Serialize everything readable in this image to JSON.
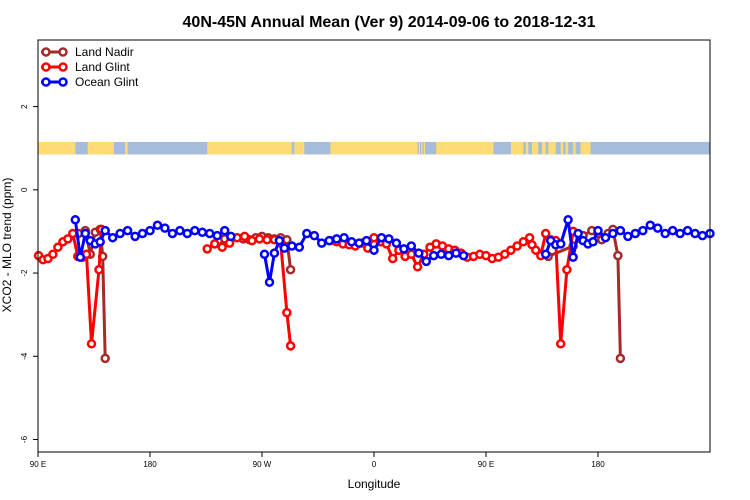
{
  "chart_data": {
    "type": "line",
    "title": "40N-45N Annual Mean (Ver 9)   2014-09-06 to 2018-12-31",
    "xlabel": "Longitude",
    "ylabel": "XCO2 - MLO trend (ppm)",
    "xlim": [
      90,
      630
    ],
    "ylim": [
      -6.3,
      3.6
    ],
    "yticks": [
      {
        "value": 2,
        "label": "2"
      },
      {
        "value": 0,
        "label": "0"
      },
      {
        "value": -2,
        "label": "-2"
      },
      {
        "value": -4,
        "label": "-4"
      },
      {
        "value": -6,
        "label": "-6"
      }
    ],
    "xticks": [
      {
        "value": 90,
        "label": "90 E"
      },
      {
        "value": 180,
        "label": "180"
      },
      {
        "value": 270,
        "label": "90 W"
      },
      {
        "value": 360,
        "label": "0"
      },
      {
        "value": 450,
        "label": "90 E"
      },
      {
        "value": 540,
        "label": "180"
      }
    ],
    "land_ocean_strip": {
      "y_range": [
        0.85,
        1.15
      ],
      "ocean_color": "#a5bddb",
      "land_color": "#fedb75",
      "land_segments": [
        [
          90,
          120
        ],
        [
          130,
          144
        ],
        [
          146,
          150
        ],
        [
          145,
          148
        ],
        [
          146,
          147
        ],
        [
          145,
          146
        ],
        [
          146,
          148
        ],
        [
          146,
          149
        ],
        [
          149,
          151
        ],
        [
          160,
          162
        ],
        [
          143,
          146
        ],
        [
          144,
          145
        ],
        [
          145,
          145
        ],
        [
          143,
          143
        ],
        [
          226,
          294
        ],
        [
          296,
          298
        ],
        [
          298,
          300
        ],
        [
          300,
          302
        ],
        [
          302,
          304
        ],
        [
          325,
          395
        ],
        [
          396,
          397
        ],
        [
          398,
          399
        ],
        [
          400,
          401
        ],
        [
          415,
          456
        ],
        [
          410,
          413
        ],
        [
          412,
          414
        ],
        [
          414,
          416
        ],
        [
          470,
          480
        ],
        [
          482,
          484
        ],
        [
          487,
          489
        ],
        [
          489,
          491
        ],
        [
          490,
          492
        ],
        [
          495,
          498
        ],
        [
          500,
          506
        ],
        [
          510,
          512
        ],
        [
          514,
          516
        ],
        [
          520,
          522
        ],
        [
          530,
          534
        ],
        [
          526,
          530
        ],
        [
          532,
          533
        ]
      ]
    },
    "legend": {
      "position": "top-left",
      "entries": [
        {
          "name": "Land Nadir",
          "color": "#a52a2a"
        },
        {
          "name": "Land Glint",
          "color": "#ff0000"
        },
        {
          "name": "Ocean Glint",
          "color": "#0000ff"
        }
      ]
    },
    "series": [
      {
        "name": "Land Nadir",
        "color": "#a52a2a",
        "segments": [
          [
            [
              122.5,
              -1.05
            ],
            [
              128,
              -0.98
            ],
            [
              132,
              -1.55
            ],
            [
              136,
              -1.02
            ],
            [
              140,
              -0.95
            ],
            [
              142,
              -1.6
            ],
            [
              144,
              -4.05
            ]
          ],
          [
            [
              235,
              -1.22
            ],
            [
              240,
              -1.18
            ],
            [
              245,
              -1.15
            ],
            [
              250,
              -1.15
            ],
            [
              255,
              -1.18
            ],
            [
              260,
              -1.2
            ],
            [
              265,
              -1.15
            ],
            [
              270,
              -1.12
            ],
            [
              275,
              -1.15
            ],
            [
              280,
              -1.18
            ],
            [
              285,
              -1.15
            ],
            [
              290,
              -1.2
            ],
            [
              293,
              -1.92
            ]
          ],
          [
            [
              500,
              -1.6
            ],
            [
              520,
              -1.35
            ],
            [
              528,
              -1.1
            ],
            [
              535,
              -0.98
            ],
            [
              540,
              -1.05
            ],
            [
              543,
              -1.2
            ],
            [
              548,
              -1.05
            ],
            [
              552,
              -0.95
            ],
            [
              556,
              -1.58
            ],
            [
              558,
              -4.05
            ]
          ]
        ]
      },
      {
        "name": "Land Glint",
        "color": "#ff0000",
        "segments": [
          [
            [
              90.5,
              -1.58
            ],
            [
              94,
              -1.68
            ],
            [
              98,
              -1.65
            ],
            [
              102,
              -1.55
            ],
            [
              106,
              -1.38
            ],
            [
              110,
              -1.25
            ],
            [
              114,
              -1.18
            ],
            [
              118,
              -1.05
            ],
            [
              122,
              -1.6
            ],
            [
              126,
              -1.62
            ],
            [
              129,
              -1.55
            ],
            [
              133,
              -3.7
            ],
            [
              139,
              -1.92
            ],
            [
              141,
              -0.95
            ]
          ],
          [
            [
              226,
              -1.42
            ],
            [
              232,
              -1.3
            ],
            [
              238,
              -1.38
            ],
            [
              244,
              -1.28
            ],
            [
              250,
              -1.15
            ],
            [
              256,
              -1.12
            ],
            [
              262,
              -1.22
            ],
            [
              268,
              -1.18
            ],
            [
              274,
              -1.2
            ],
            [
              280,
              -1.2
            ],
            [
              285,
              -1.28
            ],
            [
              290,
              -2.95
            ],
            [
              293,
              -3.75
            ]
          ],
          [
            [
              325,
              -1.22
            ],
            [
              330,
              -1.25
            ],
            [
              335,
              -1.3
            ],
            [
              340,
              -1.32
            ],
            [
              345,
              -1.35
            ],
            [
              350,
              -1.28
            ],
            [
              355,
              -1.4
            ],
            [
              360,
              -1.15
            ],
            [
              365,
              -1.25
            ],
            [
              370,
              -1.3
            ],
            [
              375,
              -1.65
            ],
            [
              380,
              -1.45
            ],
            [
              385,
              -1.6
            ],
            [
              390,
              -1.55
            ],
            [
              395,
              -1.85
            ],
            [
              400,
              -1.55
            ],
            [
              405,
              -1.38
            ],
            [
              410,
              -1.3
            ],
            [
              415,
              -1.35
            ],
            [
              420,
              -1.42
            ],
            [
              425,
              -1.45
            ],
            [
              430,
              -1.52
            ],
            [
              435,
              -1.62
            ],
            [
              440,
              -1.6
            ],
            [
              445,
              -1.55
            ],
            [
              450,
              -1.58
            ],
            [
              455,
              -1.65
            ],
            [
              460,
              -1.62
            ],
            [
              465,
              -1.55
            ],
            [
              470,
              -1.45
            ],
            [
              475,
              -1.35
            ],
            [
              480,
              -1.25
            ],
            [
              485,
              -1.15
            ],
            [
              487,
              -1.32
            ],
            [
              490,
              -1.45
            ],
            [
              494,
              -1.58
            ],
            [
              498,
              -1.05
            ],
            [
              502,
              -1.2
            ],
            [
              506,
              -1.22
            ],
            [
              510,
              -3.7
            ],
            [
              515,
              -1.92
            ],
            [
              520,
              -1.0
            ]
          ]
        ]
      },
      {
        "name": "Ocean Glint",
        "color": "#0000ff",
        "segments": [
          [
            [
              120,
              -0.72
            ],
            [
              124,
              -1.62
            ],
            [
              128,
              -1.05
            ],
            [
              132,
              -1.22
            ],
            [
              136,
              -1.3
            ],
            [
              140,
              -1.25
            ],
            [
              144,
              -0.98
            ],
            [
              150,
              -1.15
            ],
            [
              156,
              -1.05
            ],
            [
              162,
              -0.98
            ],
            [
              168,
              -1.12
            ],
            [
              174,
              -1.05
            ],
            [
              180,
              -0.98
            ],
            [
              186,
              -0.85
            ],
            [
              192,
              -0.92
            ],
            [
              198,
              -1.05
            ],
            [
              204,
              -0.98
            ],
            [
              210,
              -1.05
            ],
            [
              216,
              -0.98
            ],
            [
              222,
              -1.02
            ],
            [
              228,
              -1.05
            ],
            [
              234,
              -1.1
            ],
            [
              240,
              -0.98
            ],
            [
              245,
              -1.12
            ]
          ],
          [
            [
              272,
              -1.55
            ],
            [
              276,
              -2.22
            ],
            [
              280,
              -1.52
            ],
            [
              284,
              -1.22
            ],
            [
              288,
              -1.4
            ],
            [
              294,
              -1.35
            ],
            [
              300,
              -1.38
            ],
            [
              306,
              -1.05
            ],
            [
              312,
              -1.1
            ],
            [
              318,
              -1.28
            ],
            [
              324,
              -1.22
            ],
            [
              330,
              -1.18
            ],
            [
              336,
              -1.15
            ],
            [
              342,
              -1.25
            ],
            [
              348,
              -1.28
            ],
            [
              354,
              -1.22
            ],
            [
              360,
              -1.45
            ],
            [
              366,
              -1.15
            ],
            [
              372,
              -1.18
            ],
            [
              378,
              -1.28
            ],
            [
              384,
              -1.42
            ],
            [
              390,
              -1.35
            ],
            [
              396,
              -1.52
            ],
            [
              402,
              -1.72
            ],
            [
              408,
              -1.58
            ],
            [
              414,
              -1.55
            ],
            [
              420,
              -1.58
            ],
            [
              426,
              -1.52
            ],
            [
              432,
              -1.58
            ]
          ],
          [
            [
              498,
              -1.55
            ],
            [
              502,
              -1.22
            ],
            [
              506,
              -1.32
            ],
            [
              510,
              -1.3
            ],
            [
              516,
              -0.72
            ],
            [
              520,
              -1.62
            ],
            [
              524,
              -1.05
            ],
            [
              528,
              -1.22
            ],
            [
              532,
              -1.3
            ],
            [
              536,
              -1.25
            ],
            [
              540,
              -0.98
            ],
            [
              546,
              -1.15
            ],
            [
              552,
              -1.05
            ],
            [
              558,
              -0.98
            ],
            [
              564,
              -1.12
            ],
            [
              570,
              -1.05
            ],
            [
              576,
              -0.98
            ],
            [
              582,
              -0.85
            ],
            [
              588,
              -0.92
            ],
            [
              594,
              -1.05
            ],
            [
              600,
              -0.98
            ],
            [
              606,
              -1.05
            ],
            [
              612,
              -0.98
            ],
            [
              618,
              -1.05
            ],
            [
              624,
              -1.1
            ],
            [
              630,
              -1.05
            ]
          ]
        ]
      }
    ]
  }
}
